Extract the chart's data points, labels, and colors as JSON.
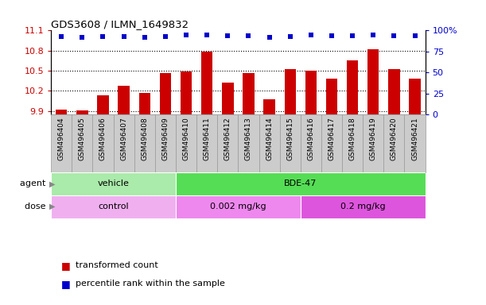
{
  "title": "GDS3608 / ILMN_1649832",
  "samples": [
    "GSM496404",
    "GSM496405",
    "GSM496406",
    "GSM496407",
    "GSM496408",
    "GSM496409",
    "GSM496410",
    "GSM496411",
    "GSM496412",
    "GSM496413",
    "GSM496414",
    "GSM496415",
    "GSM496416",
    "GSM496417",
    "GSM496418",
    "GSM496419",
    "GSM496420",
    "GSM496421"
  ],
  "transformed_counts": [
    9.92,
    9.91,
    10.13,
    10.28,
    10.17,
    10.47,
    10.49,
    10.78,
    10.32,
    10.46,
    10.08,
    10.53,
    10.5,
    10.38,
    10.65,
    10.82,
    10.53,
    10.38
  ],
  "percentile_ranks": [
    93,
    92,
    93,
    93,
    92,
    93,
    95,
    95,
    94,
    94,
    92,
    93,
    95,
    94,
    94,
    95,
    94,
    94
  ],
  "ylim_left": [
    9.85,
    11.1
  ],
  "ylim_right": [
    0,
    100
  ],
  "yticks_left": [
    9.9,
    10.2,
    10.5,
    10.8,
    11.1
  ],
  "yticks_right": [
    0,
    25,
    50,
    75,
    100
  ],
  "bar_color": "#cc0000",
  "dot_color": "#0000cc",
  "bar_bottom": 9.85,
  "agent_groups": [
    {
      "label": "vehicle",
      "start": 0,
      "end": 6,
      "color": "#aaeaaa"
    },
    {
      "label": "BDE-47",
      "start": 6,
      "end": 18,
      "color": "#55dd55"
    }
  ],
  "dose_groups": [
    {
      "label": "control",
      "start": 0,
      "end": 6,
      "color": "#f0b0f0"
    },
    {
      "label": "0.002 mg/kg",
      "start": 6,
      "end": 12,
      "color": "#ee88ee"
    },
    {
      "label": "0.2 mg/kg",
      "start": 12,
      "end": 18,
      "color": "#dd55dd"
    }
  ],
  "agent_label": "agent",
  "dose_label": "dose",
  "legend_bar_label": "transformed count",
  "legend_dot_label": "percentile rank within the sample",
  "tick_label_color_left": "#cc0000",
  "tick_label_color_right": "#0000cc",
  "xlabel_bg_color": "#cccccc",
  "xlabel_border_color": "#999999"
}
